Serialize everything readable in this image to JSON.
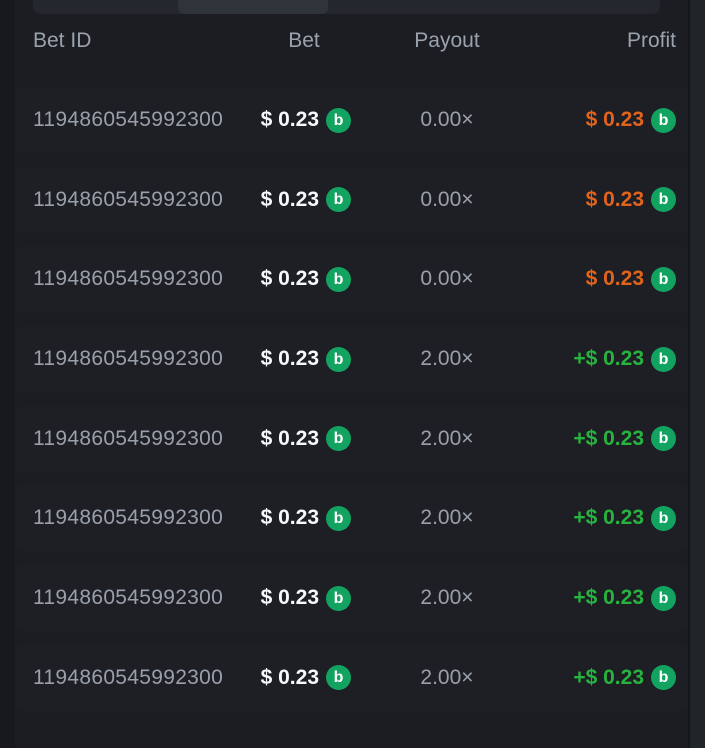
{
  "colors": {
    "page_bg": "#17191d",
    "card_bg": "#1b1d22",
    "right_strip": "#212429",
    "tab_track": "#24272d",
    "tab_selected": "#2f333a",
    "header_text": "#9aa2ad",
    "muted_text": "#99a0ab",
    "bet_text": "#f7f8f9",
    "loss_text": "#e2631c",
    "win_text": "#27b43e",
    "coin_green": "#13a360"
  },
  "icons": {
    "coin_letter": "b"
  },
  "table": {
    "headers": {
      "bet_id": "Bet ID",
      "bet": "Bet",
      "payout": "Payout",
      "profit": "Profit"
    },
    "rows": [
      {
        "bet_id": "1194860545992300",
        "bet": "$ 0.23",
        "payout": "0.00×",
        "profit": "$ 0.23",
        "profit_state": "loss"
      },
      {
        "bet_id": "1194860545992300",
        "bet": "$ 0.23",
        "payout": "0.00×",
        "profit": "$ 0.23",
        "profit_state": "loss"
      },
      {
        "bet_id": "1194860545992300",
        "bet": "$ 0.23",
        "payout": "0.00×",
        "profit": "$ 0.23",
        "profit_state": "loss"
      },
      {
        "bet_id": "1194860545992300",
        "bet": "$ 0.23",
        "payout": "2.00×",
        "profit": "+$ 0.23",
        "profit_state": "win"
      },
      {
        "bet_id": "1194860545992300",
        "bet": "$ 0.23",
        "payout": "2.00×",
        "profit": "+$ 0.23",
        "profit_state": "win"
      },
      {
        "bet_id": "1194860545992300",
        "bet": "$ 0.23",
        "payout": "2.00×",
        "profit": "+$ 0.23",
        "profit_state": "win"
      },
      {
        "bet_id": "1194860545992300",
        "bet": "$ 0.23",
        "payout": "2.00×",
        "profit": "+$ 0.23",
        "profit_state": "win"
      },
      {
        "bet_id": "1194860545992300",
        "bet": "$ 0.23",
        "payout": "2.00×",
        "profit": "+$ 0.23",
        "profit_state": "win"
      }
    ]
  }
}
